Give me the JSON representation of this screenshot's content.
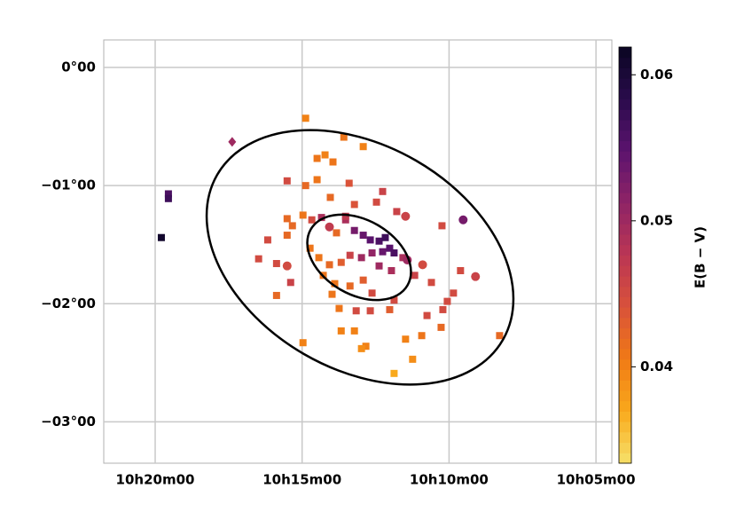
{
  "chart_data": {
    "type": "scatter",
    "xlim": [
      21.75,
      4.46
    ],
    "ylim": [
      0.233,
      -3.35
    ],
    "xticks": [
      {
        "value": 20,
        "label": "10h20m00"
      },
      {
        "value": 15,
        "label": "10h15m00"
      },
      {
        "value": 10,
        "label": "10h10m00"
      },
      {
        "value": 5,
        "label": "10h05m00"
      }
    ],
    "yticks": [
      {
        "value": 0,
        "label": "0°00"
      },
      {
        "value": -1,
        "label": "−01°00"
      },
      {
        "value": -2,
        "label": "−02°00"
      },
      {
        "value": -3,
        "label": "−03°00"
      }
    ],
    "grid": true,
    "colorbar_label": "E(B − V)",
    "clim": [
      0.0334,
      0.0619
    ],
    "cticks": [
      0.04,
      0.05,
      0.06
    ],
    "colormap": [
      "#f6e06a",
      "#f9a91c",
      "#f07a15",
      "#d9523a",
      "#bb3654",
      "#8f2466",
      "#5c136e",
      "#2a0b4c",
      "#0a0622"
    ],
    "x": [
      19.79,
      19.55,
      19.55,
      17.38,
      14.88,
      13.58,
      12.92,
      14.49,
      14.22,
      13.95,
      15.51,
      14.88,
      14.49,
      13.4,
      12.26,
      14.04,
      13.22,
      12.47,
      11.78,
      11.48,
      10.24,
      9.52,
      15.51,
      15.33,
      15.51,
      16.17,
      16.48,
      15.87,
      15.51,
      15.39,
      15.87,
      14.67,
      14.34,
      14.07,
      13.83,
      13.52,
      13.22,
      12.92,
      12.68,
      12.38,
      12.17,
      12.02,
      11.87,
      12.26,
      12.62,
      12.98,
      13.37,
      13.67,
      14.07,
      14.43,
      14.73,
      14.28,
      13.89,
      13.98,
      13.37,
      12.92,
      12.62,
      12.38,
      11.96,
      11.57,
      11.42,
      11.17,
      10.9,
      10.6,
      9.61,
      9.1,
      9.85,
      10.06,
      10.21,
      10.75,
      11.87,
      12.02,
      12.68,
      13.16,
      13.74,
      13.67,
      13.22,
      12.83,
      12.98,
      14.97,
      11.48,
      10.93,
      10.27,
      11.24,
      11.87,
      8.28,
      13.52,
      14.97
    ],
    "y": [
      -1.44,
      -1.07,
      -1.11,
      -0.63,
      -0.43,
      -0.59,
      -0.67,
      -0.77,
      -0.74,
      -0.8,
      -0.96,
      -1.0,
      -0.95,
      -0.98,
      -1.05,
      -1.1,
      -1.16,
      -1.14,
      -1.22,
      -1.26,
      -1.34,
      -1.29,
      -1.28,
      -1.34,
      -1.42,
      -1.46,
      -1.62,
      -1.66,
      -1.68,
      -1.82,
      -1.93,
      -1.29,
      -1.27,
      -1.35,
      -1.4,
      -1.29,
      -1.38,
      -1.42,
      -1.46,
      -1.47,
      -1.44,
      -1.53,
      -1.57,
      -1.56,
      -1.57,
      -1.61,
      -1.59,
      -1.65,
      -1.67,
      -1.61,
      -1.53,
      -1.76,
      -1.83,
      -1.92,
      -1.85,
      -1.8,
      -1.91,
      -1.68,
      -1.72,
      -1.61,
      -1.63,
      -1.76,
      -1.67,
      -1.82,
      -1.72,
      -1.77,
      -1.91,
      -1.98,
      -2.05,
      -2.1,
      -1.97,
      -2.05,
      -2.06,
      -2.06,
      -2.04,
      -2.23,
      -2.23,
      -2.36,
      -2.38,
      -2.33,
      -2.3,
      -2.27,
      -2.2,
      -2.47,
      -2.59,
      -2.27,
      -1.26,
      -1.25
    ],
    "color_values": [
      0.061,
      0.056,
      0.057,
      0.05,
      0.04,
      0.041,
      0.04,
      0.041,
      0.04,
      0.041,
      0.045,
      0.042,
      0.041,
      0.044,
      0.046,
      0.042,
      0.044,
      0.045,
      0.046,
      0.046,
      0.045,
      0.053,
      0.042,
      0.042,
      0.042,
      0.045,
      0.045,
      0.045,
      0.045,
      0.046,
      0.042,
      0.045,
      0.049,
      0.047,
      0.042,
      0.049,
      0.053,
      0.054,
      0.055,
      0.056,
      0.057,
      0.055,
      0.056,
      0.054,
      0.051,
      0.05,
      0.046,
      0.043,
      0.042,
      0.041,
      0.041,
      0.041,
      0.041,
      0.041,
      0.042,
      0.043,
      0.045,
      0.05,
      0.049,
      0.049,
      0.05,
      0.046,
      0.045,
      0.045,
      0.045,
      0.046,
      0.045,
      0.045,
      0.045,
      0.045,
      0.045,
      0.043,
      0.045,
      0.045,
      0.041,
      0.04,
      0.04,
      0.04,
      0.039,
      0.04,
      0.04,
      0.041,
      0.042,
      0.039,
      0.037,
      0.042,
      0.047,
      0.041
    ],
    "markers": [
      "square",
      "square",
      "square",
      "diamond",
      "square",
      "square",
      "square",
      "square",
      "square",
      "square",
      "square",
      "square",
      "square",
      "square",
      "square",
      "square",
      "square",
      "square",
      "square",
      "circle",
      "square",
      "circle",
      "square",
      "square",
      "square",
      "square",
      "square",
      "square",
      "circle",
      "square",
      "square",
      "square",
      "square",
      "circle",
      "square",
      "square",
      "square",
      "square",
      "square",
      "square",
      "square",
      "square",
      "square",
      "square",
      "square",
      "square",
      "square",
      "square",
      "square",
      "square",
      "square",
      "square",
      "square",
      "square",
      "square",
      "square",
      "square",
      "square",
      "square",
      "square",
      "circle",
      "square",
      "circle",
      "square",
      "square",
      "circle",
      "square",
      "square",
      "square",
      "square",
      "square",
      "square",
      "square",
      "square",
      "square",
      "square",
      "square",
      "square",
      "square",
      "square",
      "square",
      "square",
      "square",
      "square",
      "square",
      "square",
      "square",
      "square"
    ]
  }
}
